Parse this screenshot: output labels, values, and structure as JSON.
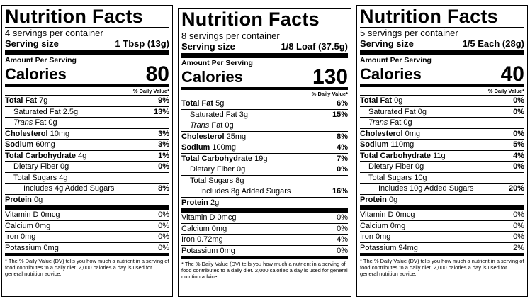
{
  "labels": [
    {
      "title": "Nutrition Facts",
      "servings": "4 servings per container",
      "serving_size_label": "Serving size",
      "serving_size_value": "1 Tbsp (13g)",
      "amount_per_serving": "Amount Per Serving",
      "calories_label": "Calories",
      "calories_value": "80",
      "dv_header": "% Daily Value*",
      "total_fat_label": "Total Fat",
      "total_fat_amount": "7g",
      "total_fat_pct": "9%",
      "sat_fat_label": "Saturated Fat",
      "sat_fat_amount": "2.5g",
      "sat_fat_pct": "13%",
      "trans_label": "Trans",
      "trans_text": "Fat 0g",
      "chol_label": "Cholesterol",
      "chol_amount": "10mg",
      "chol_pct": "3%",
      "sodium_label": "Sodium",
      "sodium_amount": "60mg",
      "sodium_pct": "3%",
      "carb_label": "Total Carbohydrate",
      "carb_amount": "4g",
      "carb_pct": "1%",
      "fiber_label": "Dietary Fiber",
      "fiber_amount": "0g",
      "fiber_pct": "0%",
      "sugars_text": "Total Sugars 4g",
      "added_text": "Includes 4g Added Sugars",
      "added_pct": "8%",
      "protein_label": "Protein",
      "protein_amount": "0g",
      "vitd_text": "Vitamin D 0mcg",
      "vitd_pct": "0%",
      "calcium_text": "Calcium 0mg",
      "calcium_pct": "0%",
      "iron_text": "Iron 0mg",
      "iron_pct": "0%",
      "potassium_text": "Potassium 0mg",
      "potassium_pct": "0%",
      "footnote": "* The % Daily Value (DV) tells you how much a nutrient in a serving of food contributes to a daily diet. 2,000 calories a day is used for general nutrition advice."
    },
    {
      "title": "Nutrition Facts",
      "servings": "8 servings per container",
      "serving_size_label": "Serving size",
      "serving_size_value": "1/8 Loaf (37.5g)",
      "amount_per_serving": "Amount Per Serving",
      "calories_label": "Calories",
      "calories_value": "130",
      "dv_header": "% Daily Value*",
      "total_fat_label": "Total Fat",
      "total_fat_amount": "5g",
      "total_fat_pct": "6%",
      "sat_fat_label": "Saturated Fat",
      "sat_fat_amount": "3g",
      "sat_fat_pct": "15%",
      "trans_label": "Trans",
      "trans_text": "Fat 0g",
      "chol_label": "Cholesterol",
      "chol_amount": "25mg",
      "chol_pct": "8%",
      "sodium_label": "Sodium",
      "sodium_amount": "100mg",
      "sodium_pct": "4%",
      "carb_label": "Total Carbohydrate",
      "carb_amount": "19g",
      "carb_pct": "7%",
      "fiber_label": "Dietary Fiber",
      "fiber_amount": "0g",
      "fiber_pct": "0%",
      "sugars_text": "Total Sugars 8g",
      "added_text": "Includes 8g Added Sugars",
      "added_pct": "16%",
      "protein_label": "Protein",
      "protein_amount": "2g",
      "vitd_text": "Vitamin D 0mcg",
      "vitd_pct": "0%",
      "calcium_text": "Calcium 0mg",
      "calcium_pct": "0%",
      "iron_text": "Iron 0.72mg",
      "iron_pct": "4%",
      "potassium_text": "Potassium 0mg",
      "potassium_pct": "0%",
      "footnote": "* The % Daily Value (DV) tells you how much a nutrient in a serving of food contributes to a daily diet. 2,000 calories a day is used for general nutrition advice."
    },
    {
      "title": "Nutrition Facts",
      "servings": "5 servings per container",
      "serving_size_label": "Serving size",
      "serving_size_value": "1/5 Each (28g)",
      "amount_per_serving": "Amount Per Serving",
      "calories_label": "Calories",
      "calories_value": "40",
      "dv_header": "% Daily Value*",
      "total_fat_label": "Total Fat",
      "total_fat_amount": "0g",
      "total_fat_pct": "0%",
      "sat_fat_label": "Saturated Fat",
      "sat_fat_amount": "0g",
      "sat_fat_pct": "0%",
      "trans_label": "Trans",
      "trans_text": "Fat 0g",
      "chol_label": "Cholesterol",
      "chol_amount": "0mg",
      "chol_pct": "0%",
      "sodium_label": "Sodium",
      "sodium_amount": "110mg",
      "sodium_pct": "5%",
      "carb_label": "Total Carbohydrate",
      "carb_amount": "11g",
      "carb_pct": "4%",
      "fiber_label": "Dietary Fiber",
      "fiber_amount": "0g",
      "fiber_pct": "0%",
      "sugars_text": "Total Sugars 10g",
      "added_text": "Includes 10g Added Sugars",
      "added_pct": "20%",
      "protein_label": "Protein",
      "protein_amount": "0g",
      "vitd_text": "Vitamin D 0mcg",
      "vitd_pct": "0%",
      "calcium_text": "Calcium 0mg",
      "calcium_pct": "0%",
      "iron_text": "Iron 0mg",
      "iron_pct": "0%",
      "potassium_text": "Potassium 94mg",
      "potassium_pct": "2%",
      "footnote": "* The % Daily Value (DV) tells you how much a nutrient in a serving of food contributes to a daily diet. 2,000 calories a day is used for general nutrition advice."
    }
  ]
}
